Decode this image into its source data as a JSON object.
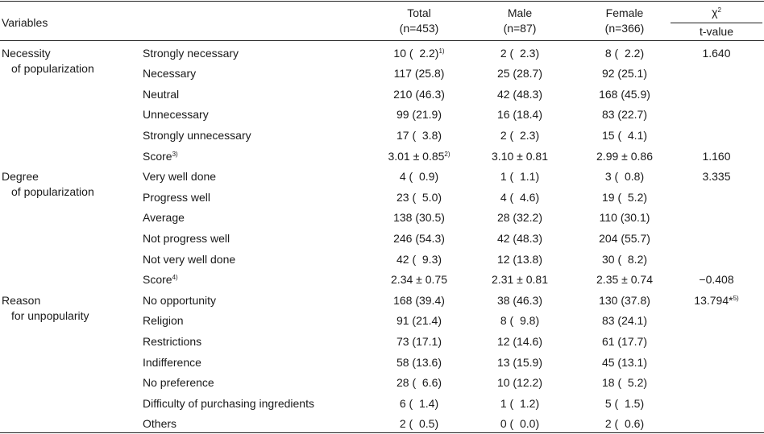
{
  "header": {
    "variables": "Variables",
    "total_label": "Total",
    "total_n": "(n=453)",
    "male_label": "Male",
    "male_n": "(n=87)",
    "female_label": "Female",
    "female_n": "(n=366)",
    "stat_top": "χ",
    "stat_top_sup": "2",
    "stat_bottom": "t-value"
  },
  "sections": [
    {
      "title_line1": "Necessity",
      "title_line2": "of popularization",
      "rows": [
        {
          "label": "Strongly necessary",
          "total": "10 (  2.2)",
          "total_sup": "1)",
          "male": "2 (  2.3)",
          "female": "8 (  2.2)",
          "stat": "1.640"
        },
        {
          "label": "Necessary",
          "total": "117 (25.8)",
          "male": "25 (28.7)",
          "female": "92 (25.1)"
        },
        {
          "label": "Neutral",
          "total": "210 (46.3)",
          "male": "42 (48.3)",
          "female": "168 (45.9)"
        },
        {
          "label": "Unnecessary",
          "total": "99 (21.9)",
          "male": "16 (18.4)",
          "female": "83 (22.7)"
        },
        {
          "label": "Strongly unnecessary",
          "total": "17 (  3.8)",
          "male": "2 (  2.3)",
          "female": "15 (  4.1)"
        },
        {
          "label": "Score",
          "label_sup": "3)",
          "total": "3.01 ± 0.85",
          "total_sup": "2)",
          "male": "3.10 ± 0.81",
          "female": "2.99 ± 0.86",
          "stat": "1.160"
        }
      ]
    },
    {
      "title_line1": "Degree",
      "title_line2": "of popularization",
      "rows": [
        {
          "label": "Very well done",
          "total": "4 (  0.9)",
          "male": "1 (  1.1)",
          "female": "3 (  0.8)",
          "stat": "3.335"
        },
        {
          "label": "Progress well",
          "total": "23 (  5.0)",
          "male": "4 (  4.6)",
          "female": "19 (  5.2)"
        },
        {
          "label": "Average",
          "total": "138 (30.5)",
          "male": "28 (32.2)",
          "female": "110 (30.1)"
        },
        {
          "label": "Not progress well",
          "total": "246 (54.3)",
          "male": "42 (48.3)",
          "female": "204 (55.7)"
        },
        {
          "label": "Not very well done",
          "total": "42 (  9.3)",
          "male": "12 (13.8)",
          "female": "30 (  8.2)"
        },
        {
          "label": "Score",
          "label_sup": "4)",
          "total": "2.34 ± 0.75",
          "male": "2.31 ± 0.81",
          "female": "2.35 ± 0.74",
          "stat": "−0.408"
        }
      ]
    },
    {
      "title_line1": "Reason",
      "title_line2": "for unpopularity",
      "rows": [
        {
          "label": "No opportunity",
          "total": "168 (39.4)",
          "male": "38 (46.3)",
          "female": "130 (37.8)",
          "stat": "13.794*",
          "stat_sup": "5)"
        },
        {
          "label": "Religion",
          "total": "91 (21.4)",
          "male": "8 (  9.8)",
          "female": "83 (24.1)"
        },
        {
          "label": "Restrictions",
          "total": "73 (17.1)",
          "male": "12 (14.6)",
          "female": "61 (17.7)"
        },
        {
          "label": "Indifference",
          "total": "58 (13.6)",
          "male": "13 (15.9)",
          "female": "45 (13.1)"
        },
        {
          "label": "No preference",
          "total": "28 (  6.6)",
          "male": "10 (12.2)",
          "female": "18 (  5.2)"
        },
        {
          "label": "Difficulty of purchasing ingredients",
          "total": "6 (  1.4)",
          "male": "1 (  1.2)",
          "female": "5 (  1.5)"
        },
        {
          "label": "Others",
          "total": "2 (  0.5)",
          "male": "0 (  0.0)",
          "female": "2 (  0.6)"
        }
      ]
    }
  ]
}
